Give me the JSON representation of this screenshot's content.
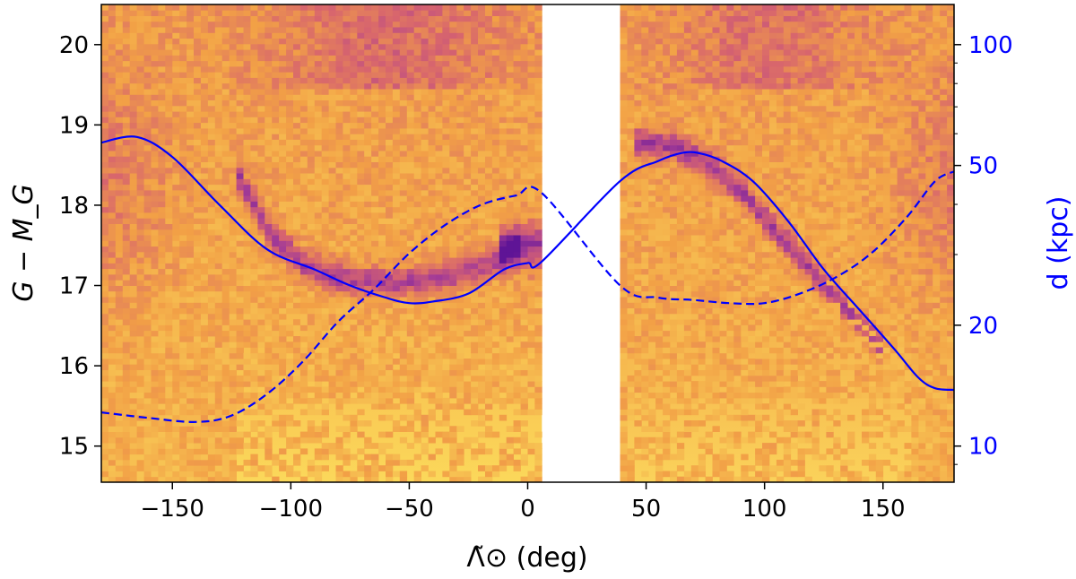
{
  "chart_data": {
    "type": "heatmap",
    "title": "",
    "xlabel": "Λ̃⊙ (deg)",
    "ylabel": "G − M_G",
    "y2label": "d (kpc)",
    "xlim": [
      -180,
      180
    ],
    "ylim": [
      14.55,
      20.5
    ],
    "y2_scale": "log",
    "y2_relation": "G - M_G = 5*log10(d_kpc) + 10",
    "xticks": [
      -150,
      -100,
      -50,
      0,
      50,
      100,
      150
    ],
    "xtick_labels": [
      "−150",
      "−100",
      "−50",
      "0",
      "50",
      "100",
      "150"
    ],
    "yticks": [
      15,
      16,
      17,
      18,
      19,
      20
    ],
    "ytick_labels": [
      "15",
      "16",
      "17",
      "18",
      "19",
      "20"
    ],
    "y2ticks": [
      10,
      20,
      50,
      100
    ],
    "y2tick_labels": [
      "10",
      "20",
      "50",
      "100"
    ],
    "y2_minor_ticks": [
      9,
      30,
      40,
      60,
      70,
      80,
      90
    ],
    "grid": false,
    "colormap": "plasma-like (orange-yellow low density, purple high density)",
    "no_data_region_deg": [
      6,
      39
    ],
    "series": [
      {
        "style": "solid",
        "color": "#0000ff",
        "x": [
          -180,
          -165,
          -150,
          -130,
          -110,
          -90,
          -75,
          -60,
          -50,
          -40,
          -25,
          -10,
          0,
          6,
          39,
          55,
          65,
          72,
          82,
          95,
          110,
          125,
          140,
          155,
          165,
          172,
          180
        ],
        "y": [
          18.78,
          18.85,
          18.6,
          18.0,
          17.45,
          17.2,
          17.0,
          16.85,
          16.78,
          16.8,
          16.9,
          17.2,
          17.28,
          17.3,
          18.3,
          18.55,
          18.65,
          18.65,
          18.55,
          18.3,
          17.8,
          17.2,
          16.7,
          16.2,
          15.85,
          15.72,
          15.7
        ]
      },
      {
        "style": "dashed",
        "color": "#0000ff",
        "x": [
          -180,
          -160,
          -140,
          -125,
          -110,
          -95,
          -80,
          -65,
          -50,
          -35,
          -20,
          -5,
          6,
          39,
          55,
          70,
          85,
          100,
          115,
          130,
          145,
          160,
          172,
          180
        ],
        "y": [
          15.42,
          15.35,
          15.3,
          15.38,
          15.65,
          16.05,
          16.55,
          16.95,
          17.4,
          17.75,
          18.0,
          18.12,
          18.15,
          17.0,
          16.85,
          16.82,
          16.78,
          16.78,
          16.9,
          17.1,
          17.4,
          17.85,
          18.3,
          18.42
        ]
      }
    ]
  },
  "colors": {
    "line": "#0000ff",
    "right_axis": "#0000ff",
    "axis": "#000000"
  }
}
